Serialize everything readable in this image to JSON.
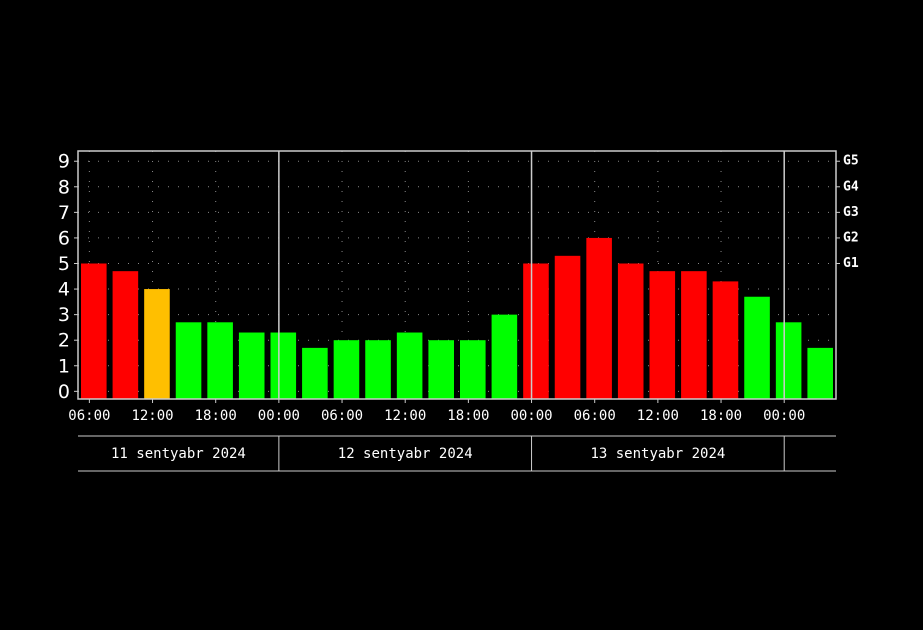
{
  "chart_data": {
    "type": "bar",
    "categories": [
      null,
      null,
      null,
      null,
      null,
      null,
      null,
      null,
      null,
      null,
      null,
      null,
      null,
      null,
      null,
      null,
      null,
      null,
      null,
      null,
      null,
      null,
      null,
      null
    ],
    "values": [
      5,
      4.7,
      4,
      2.7,
      2.7,
      2.3,
      2.3,
      1.7,
      2,
      2,
      2.3,
      2,
      2,
      3,
      5,
      5.3,
      6,
      5,
      4.7,
      4.7,
      4.3,
      3.7,
      2.7,
      1.7
    ],
    "colors": [
      "#ff0000",
      "#ff0000",
      "#ffbf00",
      "#00ff00",
      "#00ff00",
      "#00ff00",
      "#00ff00",
      "#00ff00",
      "#00ff00",
      "#00ff00",
      "#00ff00",
      "#00ff00",
      "#00ff00",
      "#00ff00",
      "#ff0000",
      "#ff0000",
      "#ff0000",
      "#ff0000",
      "#ff0000",
      "#ff0000",
      "#ff0000",
      "#00ff00",
      "#00ff00",
      "#00ff00"
    ],
    "ylim": [
      -0.3,
      9.4
    ],
    "yticks": [
      0,
      1,
      2,
      3,
      4,
      5,
      6,
      7,
      8,
      9
    ],
    "y2lim": [
      -0.3,
      9.4
    ],
    "y2ticks": [
      {
        "value": 5,
        "label": "G1"
      },
      {
        "value": 6,
        "label": "G2"
      },
      {
        "value": 7,
        "label": "G3"
      },
      {
        "value": 8,
        "label": "G4"
      },
      {
        "value": 9,
        "label": "G5"
      }
    ],
    "xlim": [
      0,
      24
    ],
    "xticks": [
      {
        "value": 0.36,
        "label": "06:00"
      },
      {
        "value": 2.36,
        "label": "12:00"
      },
      {
        "value": 4.36,
        "label": "18:00"
      },
      {
        "value": 6.36,
        "label": "00:00"
      },
      {
        "value": 8.36,
        "label": "06:00"
      },
      {
        "value": 10.36,
        "label": "12:00"
      },
      {
        "value": 12.36,
        "label": "18:00"
      },
      {
        "value": 14.36,
        "label": "00:00"
      },
      {
        "value": 16.36,
        "label": "06:00"
      },
      {
        "value": 18.36,
        "label": "12:00"
      },
      {
        "value": 20.36,
        "label": "18:00"
      },
      {
        "value": 22.36,
        "label": "00:00"
      }
    ],
    "days": [
      "11 sentyabr 2024",
      "12 sentyabr 2024",
      "13 sentyabr 2024"
    ],
    "grid": true
  }
}
